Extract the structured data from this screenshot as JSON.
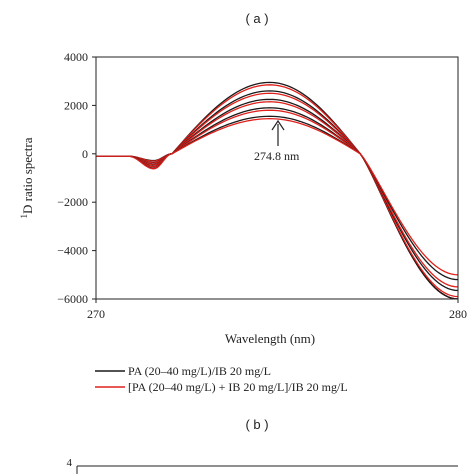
{
  "panel_a": {
    "label": "( a )"
  },
  "panel_b": {
    "label": "( b )",
    "partial_y_tick": "4"
  },
  "colors": {
    "black_series": "#1a1a1a",
    "red_series": "#e0201b",
    "axis": "#222222"
  },
  "chart_data": {
    "type": "line",
    "title": "",
    "xlabel": "Wavelength (nm)",
    "ylabel_superscript": "1",
    "ylabel": "D ratio spectra",
    "xlim": [
      270,
      280
    ],
    "ylim": [
      -6000,
      4000
    ],
    "x_ticks": [
      "270",
      "280"
    ],
    "y_ticks": [
      "4000",
      "2000",
      "0",
      "−2000",
      "−4000",
      "−6000"
    ],
    "y_tick_values": [
      4000,
      2000,
      0,
      -2000,
      -4000,
      -6000
    ],
    "grid": false,
    "legend_position": "bottom",
    "legend": [
      {
        "text": "PA (20–40 mg/L)/IB 20 mg/L",
        "color": "#1a1a1a"
      },
      {
        "text": "[PA (20–40 mg/L) + IB 20 mg/L]/IB 20 mg/L",
        "color": "#e0201b"
      }
    ],
    "annotation": {
      "text": "274.8 nm",
      "x": 274.8,
      "y": 1400
    },
    "flat_start_x": 269.8,
    "flat_end_x": 270.9,
    "flat_y": -100,
    "trough_x": 271.6,
    "zero_cross_1_x": 272.1,
    "peak_x": 274.8,
    "zero_cross_2_x": 277.3,
    "x_end": 280,
    "series": [
      {
        "color": "#1a1a1a",
        "trough": -280,
        "peak": 2950,
        "end": -6000
      },
      {
        "color": "#e0201b",
        "trough": -300,
        "peak": 2850,
        "end": -6000
      },
      {
        "color": "#1a1a1a",
        "trough": -360,
        "peak": 2600,
        "end": -6000
      },
      {
        "color": "#e0201b",
        "trough": -380,
        "peak": 2500,
        "end": -6000
      },
      {
        "color": "#1a1a1a",
        "trough": -440,
        "peak": 2250,
        "end": -6000
      },
      {
        "color": "#e0201b",
        "trough": -460,
        "peak": 2150,
        "end": -5900
      },
      {
        "color": "#1a1a1a",
        "trough": -520,
        "peak": 1900,
        "end": -5650
      },
      {
        "color": "#e0201b",
        "trough": -540,
        "peak": 1800,
        "end": -5500
      },
      {
        "color": "#1a1a1a",
        "trough": -600,
        "peak": 1550,
        "end": -5200
      },
      {
        "color": "#e0201b",
        "trough": -620,
        "peak": 1450,
        "end": -5000
      }
    ]
  }
}
